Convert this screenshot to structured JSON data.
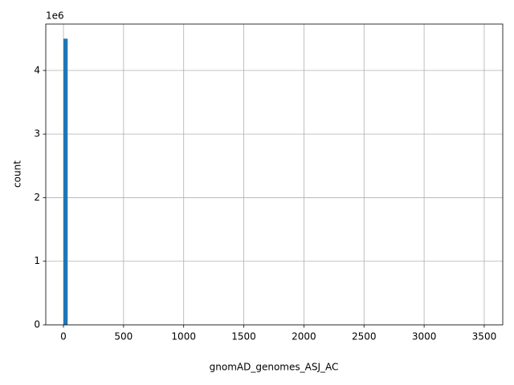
{
  "chart_data": {
    "type": "histogram",
    "xlabel": "gnomAD_genomes_ASJ_AC",
    "ylabel": "count",
    "y_offset_label": "1e6",
    "color": "#1f77b4",
    "grid": true,
    "bins": [
      0,
      35,
      70,
      105,
      140,
      175,
      210,
      245,
      280,
      315,
      350,
      385,
      420,
      455,
      490,
      525,
      560,
      595,
      630,
      665,
      700,
      735,
      770,
      805,
      840,
      875,
      910,
      945,
      980,
      1015,
      1050,
      1085,
      1120,
      1155,
      1190,
      1225,
      1260,
      1295,
      1330,
      1365,
      1400,
      1435,
      1470,
      1505,
      1540,
      1575,
      1610,
      1645,
      1680,
      1715,
      1750,
      1785,
      1820,
      1855,
      1890,
      1925,
      1960,
      1995,
      2030,
      2065,
      2100,
      2135,
      2170,
      2205,
      2240,
      2275,
      2310,
      2345,
      2380,
      2415,
      2450,
      2485,
      2520,
      2555,
      2590,
      2625,
      2660,
      2695,
      2730,
      2765,
      2800,
      2835,
      2870,
      2905,
      2940,
      2975,
      3010,
      3045,
      3080,
      3115,
      3150,
      3185,
      3220,
      3255,
      3290,
      3325,
      3360,
      3395,
      3430,
      3465,
      3500
    ],
    "counts": [
      4500000,
      0,
      0,
      0,
      0,
      0,
      0,
      0,
      0,
      0,
      0,
      0,
      0,
      0,
      0,
      0,
      0,
      0,
      0,
      0,
      0,
      0,
      0,
      0,
      0,
      0,
      0,
      0,
      0,
      0,
      0,
      0,
      0,
      0,
      0,
      0,
      0,
      0,
      0,
      0,
      0,
      0,
      0,
      0,
      0,
      0,
      0,
      0,
      0,
      0,
      0,
      0,
      0,
      0,
      0,
      0,
      0,
      0,
      0,
      0,
      0,
      0,
      0,
      0,
      0,
      0,
      0,
      0,
      0,
      0,
      0,
      0,
      0,
      0,
      0,
      0,
      0,
      0,
      0,
      0,
      0,
      0,
      0,
      0,
      0,
      0,
      0,
      0,
      0,
      0,
      0,
      0,
      0,
      0,
      0,
      0,
      0,
      0,
      0,
      0
    ],
    "xlim": [
      -147,
      3654
    ],
    "xticks": [
      0,
      500,
      1000,
      1500,
      2000,
      2500,
      3000,
      3500
    ],
    "ylim": [
      0,
      4730000
    ],
    "yticks": [
      {
        "value": 0,
        "label": "0"
      },
      {
        "value": 1000000,
        "label": "1"
      },
      {
        "value": 2000000,
        "label": "2"
      },
      {
        "value": 3000000,
        "label": "3"
      },
      {
        "value": 4000000,
        "label": "4"
      }
    ]
  }
}
